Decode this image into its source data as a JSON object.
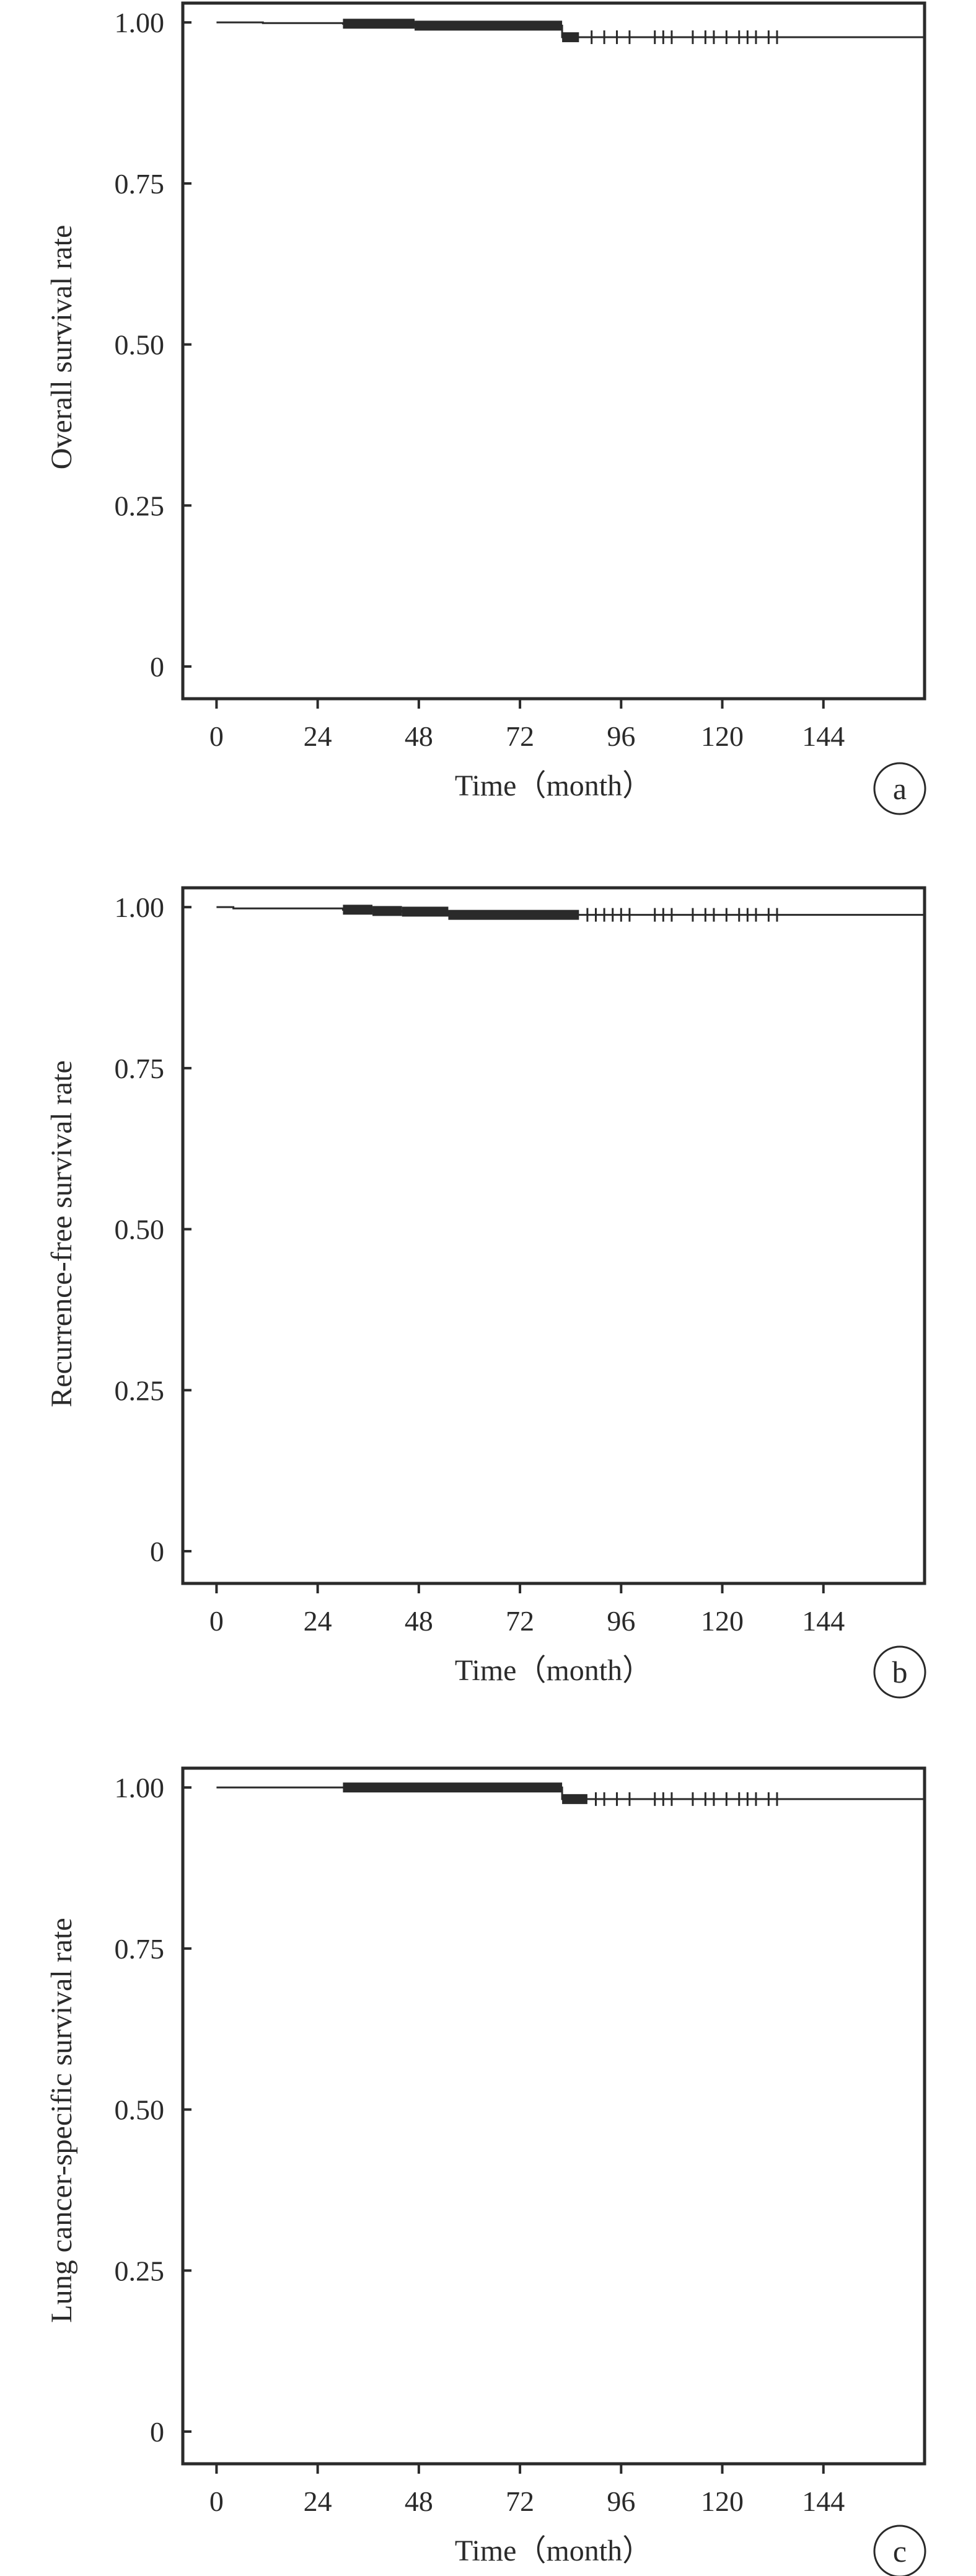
{
  "chart_data": [
    {
      "type": "line",
      "panel_label": "a",
      "xlabel": "Time（month）",
      "ylabel": "Overall survival rate",
      "xticks": [
        0,
        24,
        48,
        72,
        96,
        120,
        144
      ],
      "xtick_labels": [
        "0",
        "24",
        "48",
        "72",
        "96",
        "120",
        "144"
      ],
      "yticks": [
        0,
        0.25,
        0.5,
        0.75,
        1.0
      ],
      "ytick_labels": [
        "0",
        "0.25",
        "0.50",
        "0.75",
        "1.00"
      ],
      "xlim": [
        -8,
        168
      ],
      "ylim": [
        -0.05,
        1.03
      ],
      "grid": false,
      "series": [
        {
          "steps": [
            [
              0,
              1.0
            ],
            [
              11,
              0.999
            ],
            [
              30,
              0.998
            ],
            [
              47,
              0.995
            ],
            [
              82,
              0.977
            ],
            [
              168,
              0.975
            ]
          ],
          "censor_dense": [
            [
              30,
              47
            ],
            [
              47,
              82
            ],
            [
              82,
              86
            ]
          ],
          "censor_marks": [
            89,
            92,
            95,
            98,
            104,
            106,
            108,
            113,
            116,
            118,
            121,
            124,
            126,
            128,
            131,
            133
          ]
        }
      ]
    },
    {
      "type": "line",
      "panel_label": "b",
      "xlabel": "Time（month）",
      "ylabel": "Recurrence-free survival rate",
      "xticks": [
        0,
        24,
        48,
        72,
        96,
        120,
        144
      ],
      "xtick_labels": [
        "0",
        "24",
        "48",
        "72",
        "96",
        "120",
        "144"
      ],
      "yticks": [
        0,
        0.25,
        0.5,
        0.75,
        1.0
      ],
      "ytick_labels": [
        "0",
        "0.25",
        "0.50",
        "0.75",
        "1.00"
      ],
      "xlim": [
        -8,
        168
      ],
      "ylim": [
        -0.05,
        1.03
      ],
      "grid": false,
      "series": [
        {
          "steps": [
            [
              0,
              1.0
            ],
            [
              4,
              0.998
            ],
            [
              30,
              0.996
            ],
            [
              37,
              0.994
            ],
            [
              44,
              0.993
            ],
            [
              48,
              0.992
            ],
            [
              55,
              0.988
            ],
            [
              168,
              0.986
            ]
          ],
          "censor_dense": [
            [
              30,
              37
            ],
            [
              37,
              44
            ],
            [
              44,
              55
            ],
            [
              55,
              86
            ]
          ],
          "censor_marks": [
            88,
            90,
            92,
            94,
            96,
            98,
            104,
            106,
            108,
            113,
            116,
            118,
            121,
            124,
            126,
            128,
            131,
            133
          ]
        }
      ]
    },
    {
      "type": "line",
      "panel_label": "c",
      "xlabel": "Time（month）",
      "ylabel": "Lung cancer-specific survival rate",
      "xticks": [
        0,
        24,
        48,
        72,
        96,
        120,
        144
      ],
      "xtick_labels": [
        "0",
        "24",
        "48",
        "72",
        "96",
        "120",
        "144"
      ],
      "yticks": [
        0,
        0.25,
        0.5,
        0.75,
        1.0
      ],
      "ytick_labels": [
        "0",
        "0.25",
        "0.50",
        "0.75",
        "1.00"
      ],
      "xlim": [
        -8,
        168
      ],
      "ylim": [
        -0.05,
        1.03
      ],
      "grid": false,
      "series": [
        {
          "steps": [
            [
              0,
              1.0
            ],
            [
              82,
              0.982
            ],
            [
              168,
              0.98
            ]
          ],
          "censor_dense": [
            [
              30,
              82
            ],
            [
              82,
              88
            ]
          ],
          "censor_marks": [
            90,
            92,
            95,
            98,
            104,
            106,
            108,
            113,
            116,
            118,
            121,
            124,
            126,
            128,
            131,
            133
          ]
        }
      ]
    }
  ]
}
